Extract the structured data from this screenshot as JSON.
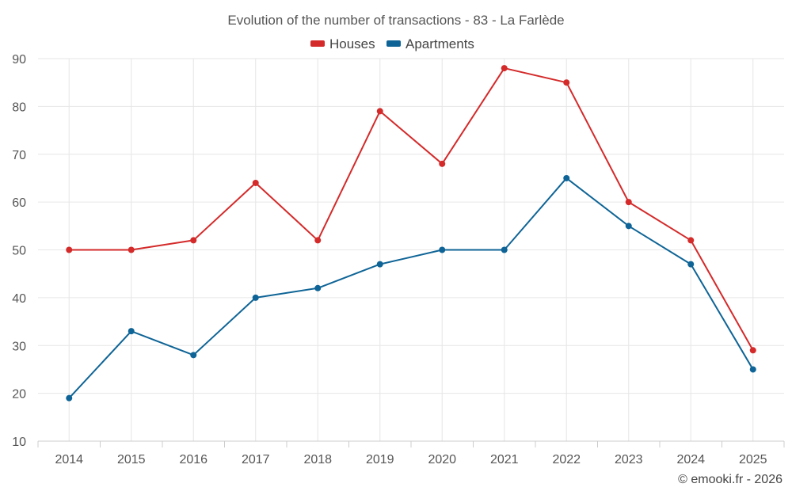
{
  "chart_data": {
    "type": "line",
    "title": "Evolution of the number of transactions - 83 - La Farlède",
    "categories": [
      "2014",
      "2015",
      "2016",
      "2017",
      "2018",
      "2019",
      "2020",
      "2021",
      "2022",
      "2023",
      "2024",
      "2025"
    ],
    "series": [
      {
        "name": "Houses",
        "color": "#d42a2a",
        "values": [
          50,
          50,
          52,
          64,
          52,
          79,
          68,
          88,
          85,
          60,
          52,
          29
        ]
      },
      {
        "name": "Apartments",
        "color": "#0e6496",
        "values": [
          19,
          33,
          28,
          40,
          42,
          47,
          50,
          50,
          65,
          55,
          47,
          25
        ]
      }
    ],
    "ylim": [
      10,
      90
    ],
    "yticks": [
      "10",
      "20",
      "30",
      "40",
      "50",
      "60",
      "70",
      "80",
      "90"
    ],
    "grid": true,
    "legend_position": "top-center",
    "xlabel": "",
    "ylabel": ""
  },
  "credit": "© emooki.fr - 2026"
}
